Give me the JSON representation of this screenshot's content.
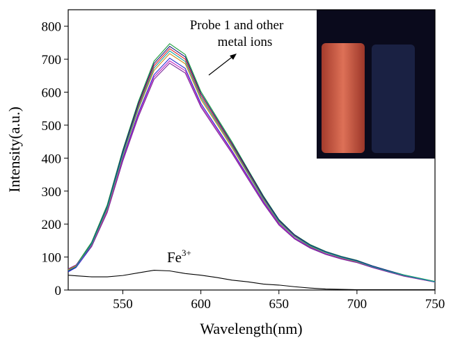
{
  "chart_data": {
    "type": "line",
    "xlabel": "Wavelength(nm)",
    "ylabel": "Intensity(a.u.)",
    "annotations": [
      {
        "lines": [
          "Probe 1 and other",
          "metal ions"
        ]
      },
      {
        "text": "Fe",
        "sup": "3+"
      }
    ],
    "xlim": [
      515,
      750
    ],
    "ylim": [
      0,
      850
    ],
    "xticks": [
      550,
      600,
      650,
      700,
      750
    ],
    "yticks": [
      0,
      100,
      200,
      300,
      400,
      500,
      600,
      700,
      800
    ],
    "grid": false,
    "x": [
      515,
      520,
      530,
      540,
      550,
      560,
      570,
      580,
      590,
      600,
      610,
      620,
      630,
      640,
      650,
      660,
      670,
      680,
      690,
      700,
      710,
      720,
      730,
      740,
      750
    ],
    "series": [
      {
        "color": "#e0202a",
        "values": [
          60,
          72,
          140,
          250,
          416,
          560,
          680,
          732,
          700,
          590,
          515,
          440,
          360,
          280,
          210,
          165,
          135,
          115,
          100,
          88,
          72,
          58,
          45,
          35,
          25
        ]
      },
      {
        "color": "#2a2ad0",
        "values": [
          55,
          68,
          132,
          238,
          400,
          538,
          653,
          703,
          672,
          566,
          494,
          422,
          346,
          269,
          202,
          158,
          130,
          110,
          96,
          84,
          69,
          56,
          43,
          34,
          24
        ]
      },
      {
        "color": "#1a9a3a",
        "values": [
          63,
          75,
          145,
          258,
          425,
          572,
          694,
          747,
          714,
          602,
          525,
          449,
          367,
          286,
          214,
          168,
          138,
          117,
          102,
          90,
          73,
          59,
          46,
          36,
          26
        ]
      },
      {
        "color": "#c020c0",
        "values": [
          58,
          70,
          135,
          240,
          395,
          532,
          646,
          695,
          665,
          560,
          489,
          418,
          342,
          266,
          200,
          157,
          128,
          109,
          95,
          84,
          68,
          55,
          43,
          33,
          24
        ]
      },
      {
        "color": "#d08a10",
        "values": [
          62,
          74,
          138,
          245,
          408,
          549,
          666,
          717,
          686,
          578,
          505,
          431,
          353,
          274,
          206,
          162,
          132,
          113,
          98,
          86,
          71,
          57,
          44,
          34,
          25
        ]
      },
      {
        "color": "#1a1a80",
        "values": [
          57,
          70,
          141,
          252,
          420,
          566,
          687,
          739,
          707,
          596,
          520,
          444,
          364,
          283,
          212,
          167,
          136,
          116,
          101,
          89,
          73,
          59,
          45,
          35,
          25
        ]
      },
      {
        "color": "#7a2a9a",
        "values": [
          64,
          76,
          132,
          235,
          391,
          526,
          639,
          688,
          658,
          555,
          484,
          414,
          338,
          263,
          197,
          155,
          127,
          108,
          94,
          83,
          68,
          55,
          42,
          33,
          24
        ]
      },
      {
        "color": "#10a0a0",
        "values": [
          59,
          71,
          139,
          248,
          412,
          554,
          673,
          725,
          693,
          584,
          510,
          436,
          356,
          277,
          208,
          163,
          134,
          114,
          99,
          87,
          71,
          57,
          45,
          35,
          25
        ]
      },
      {
        "color": "#000000",
        "values": [
          45,
          43,
          40,
          40,
          44,
          52,
          60,
          58,
          50,
          45,
          38,
          30,
          25,
          18,
          15,
          10,
          6,
          3,
          2,
          1,
          1,
          1,
          1,
          1,
          1
        ]
      }
    ]
  }
}
